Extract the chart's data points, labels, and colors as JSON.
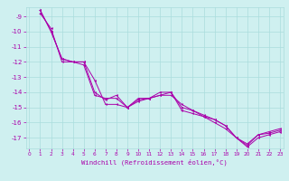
{
  "xlabel": "Windchill (Refroidissement éolien,°C)",
  "background_color": "#cff0f0",
  "grid_color": "#aadddd",
  "line_color": "#aa00aa",
  "x_ticks": [
    0,
    1,
    2,
    3,
    4,
    5,
    6,
    7,
    8,
    9,
    10,
    11,
    12,
    13,
    14,
    15,
    16,
    17,
    18,
    19,
    20,
    21,
    22,
    23
  ],
  "y_ticks": [
    -9,
    -10,
    -11,
    -12,
    -13,
    -14,
    -15,
    -16,
    -17
  ],
  "ylim": [
    -17.7,
    -8.4
  ],
  "xlim": [
    -0.3,
    23.3
  ],
  "series": [
    [
      null,
      -8.8,
      -9.8,
      -12.0,
      -12.0,
      -12.0,
      -14.0,
      -14.5,
      -14.2,
      -15.0,
      -14.5,
      -14.4,
      -14.0,
      -14.0,
      -15.0,
      -15.2,
      -15.5,
      -15.8,
      -16.2,
      -17.0,
      -17.5,
      -16.8,
      -16.7,
      -16.5
    ],
    [
      null,
      -8.6,
      -10.0,
      -11.8,
      -12.0,
      -12.2,
      -14.2,
      -14.4,
      -14.4,
      -15.0,
      -14.4,
      -14.4,
      -14.2,
      -14.2,
      -14.8,
      -15.2,
      -15.6,
      -16.0,
      -16.4,
      -17.0,
      -17.6,
      -17.0,
      -16.8,
      -16.6
    ],
    [
      null,
      -8.6,
      -10.0,
      -11.8,
      -12.0,
      -12.0,
      -13.2,
      -14.8,
      -14.8,
      -15.0,
      -14.6,
      -14.4,
      -14.2,
      -14.0,
      -15.2,
      -15.4,
      -15.6,
      -15.8,
      -16.2,
      -17.0,
      -17.4,
      -16.8,
      -16.6,
      -16.4
    ]
  ]
}
